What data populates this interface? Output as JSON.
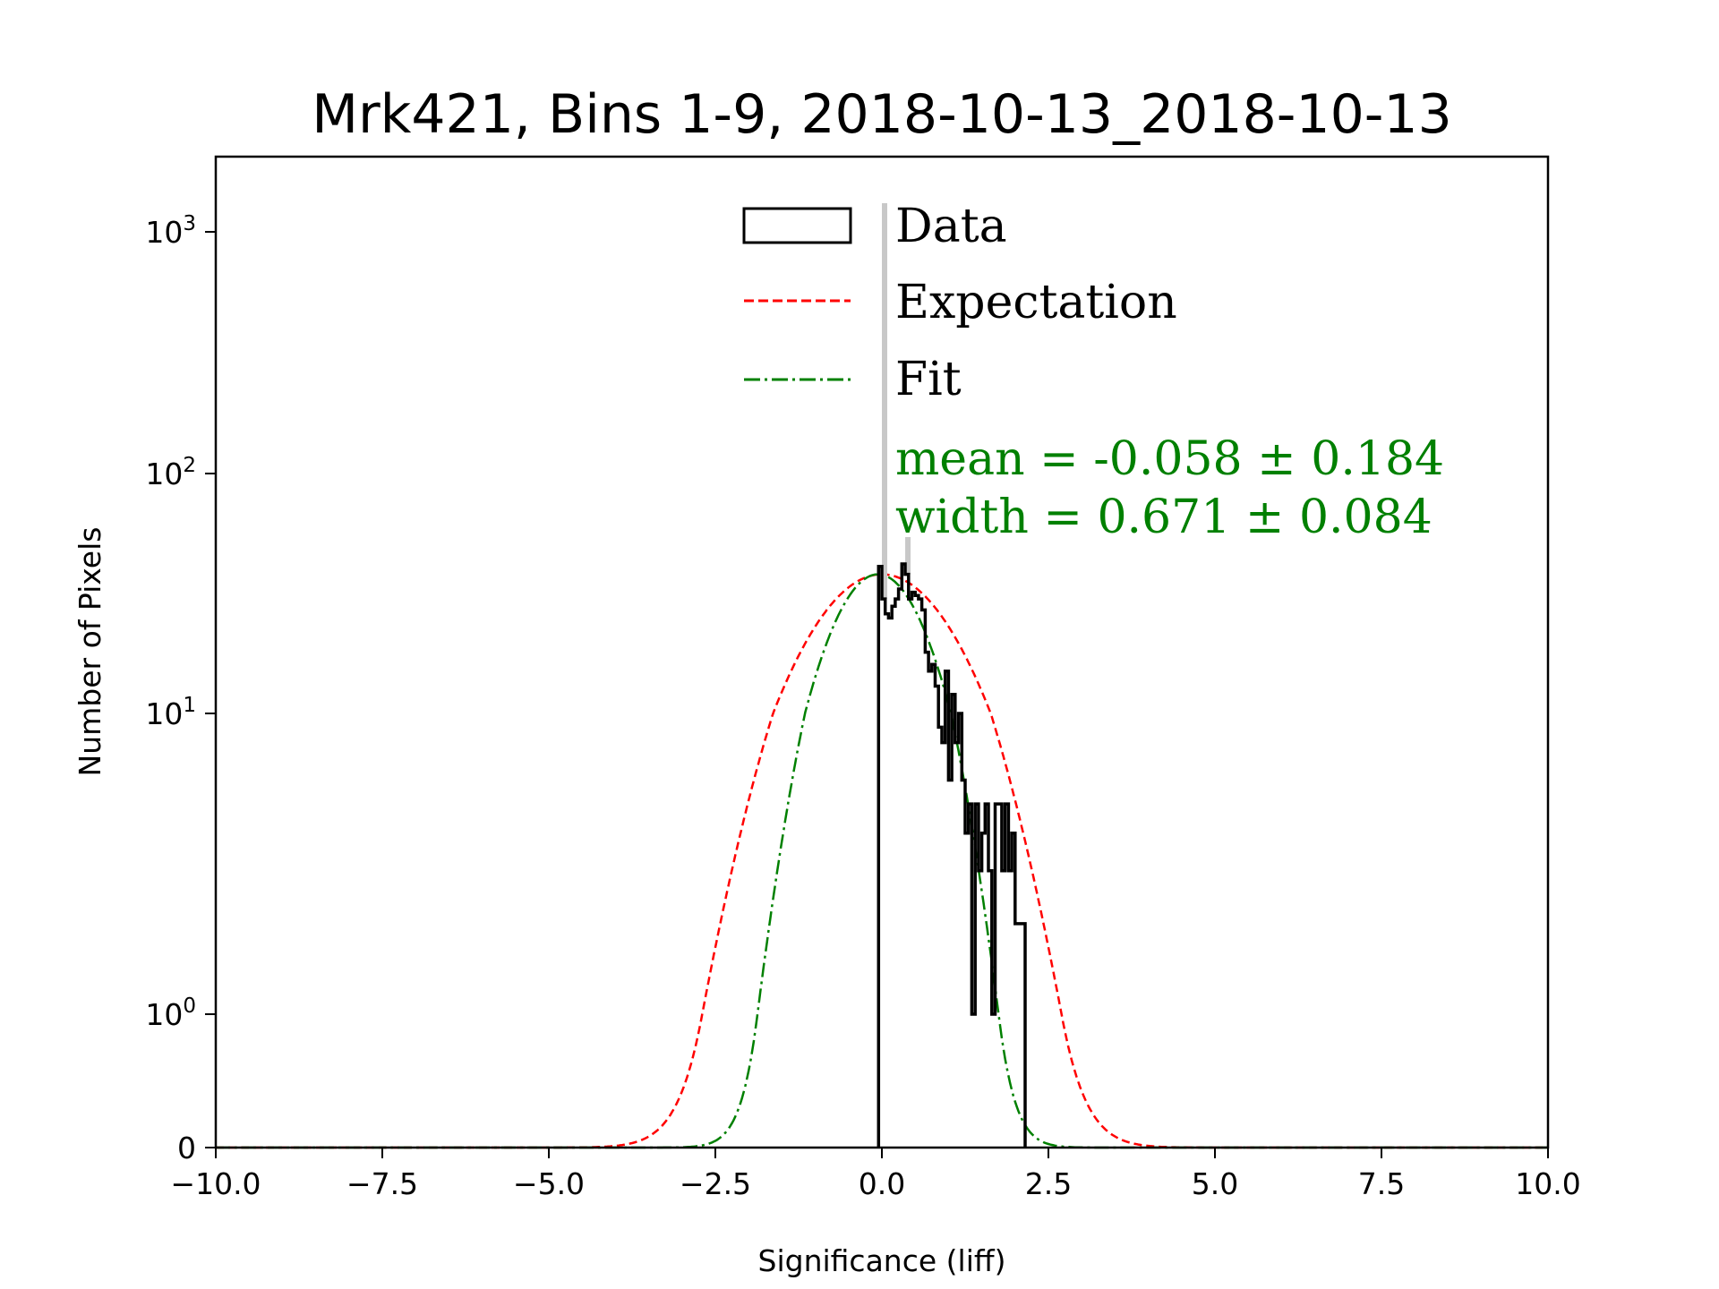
{
  "chart_data": {
    "type": "line",
    "title": "Mrk421, Bins 1-9, 2018-10-13_2018-10-13",
    "xlabel": "Significance (liff)",
    "ylabel": "Number of Pixels",
    "xlim": [
      -10,
      10
    ],
    "ylim": [
      0,
      2000
    ],
    "yscale": "symlog",
    "x_ticks": [
      -10,
      -7.5,
      -5,
      -2.5,
      0,
      2.5,
      5,
      7.5,
      10
    ],
    "x_tick_labels": [
      "−10.0",
      "−7.5",
      "−5.0",
      "−2.5",
      "0.0",
      "2.5",
      "5.0",
      "7.5",
      "10.0"
    ],
    "y_ticks": [
      {
        "value": 0,
        "base": "0",
        "exp": ""
      },
      {
        "value": 1,
        "base": "10",
        "exp": "0"
      },
      {
        "value": 10,
        "base": "10",
        "exp": "1"
      },
      {
        "value": 100,
        "base": "10",
        "exp": "2"
      },
      {
        "value": 1000,
        "base": "10",
        "exp": "3"
      }
    ],
    "grid": false,
    "legend": {
      "placement": "top-center",
      "entries": [
        {
          "label": "Data",
          "style": "step-outline",
          "color": "#000000"
        },
        {
          "label": "Expectation",
          "style": "dashed",
          "color": "#ff0000"
        },
        {
          "label": "Fit",
          "style": "dash-dot",
          "color": "#008000"
        }
      ]
    },
    "annotations": [
      {
        "text": "mean = -0.058 ± 0.184",
        "color": "#008000"
      },
      {
        "text": "width = 0.671 ± 0.084",
        "color": "#008000"
      }
    ],
    "series": [
      {
        "name": "Data",
        "kind": "histogram-step",
        "color": "#000000",
        "bin_edges": [
          -0.05,
          0.0,
          0.05,
          0.1,
          0.15,
          0.2,
          0.25,
          0.3,
          0.35,
          0.4,
          0.45,
          0.5,
          0.55,
          0.6,
          0.65,
          0.7,
          0.75,
          0.8,
          0.85,
          0.9,
          0.95,
          1.0,
          1.05,
          1.1,
          1.15,
          1.2,
          1.25,
          1.3,
          1.35,
          1.4,
          1.45,
          1.5,
          1.55,
          1.6,
          1.65,
          1.7,
          1.75,
          1.8,
          1.85,
          1.9,
          1.95,
          2.0,
          2.05,
          2.1,
          2.15
        ],
        "counts": [
          41,
          30,
          26,
          25,
          28,
          30,
          33,
          42,
          38,
          30,
          32,
          31,
          30,
          27,
          18,
          15,
          16,
          13,
          9,
          8,
          15,
          6,
          12,
          8,
          10,
          6,
          4,
          5,
          1,
          5,
          3,
          4,
          5,
          3,
          1,
          5,
          5,
          3,
          5,
          3,
          4,
          2,
          2,
          2
        ],
        "note": "gray markers extend above bins at 0.0 and 0.35"
      },
      {
        "name": "Expectation",
        "kind": "gaussian",
        "color": "#ff0000",
        "mean": 0.0,
        "sigma": 1.0,
        "peak": 38
      },
      {
        "name": "Fit",
        "kind": "gaussian",
        "color": "#008000",
        "mean": -0.058,
        "sigma": 0.671,
        "peak": 38
      }
    ]
  }
}
